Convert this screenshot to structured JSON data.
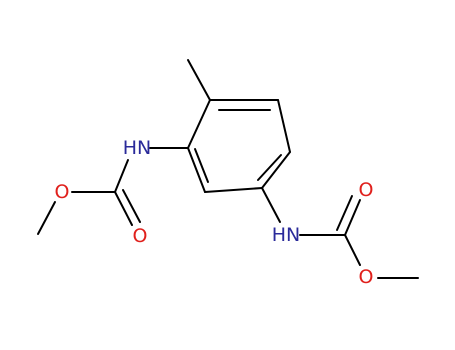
{
  "atoms": [
    "HN",
    "O",
    "O",
    "HN",
    "O",
    "O"
  ]
}
